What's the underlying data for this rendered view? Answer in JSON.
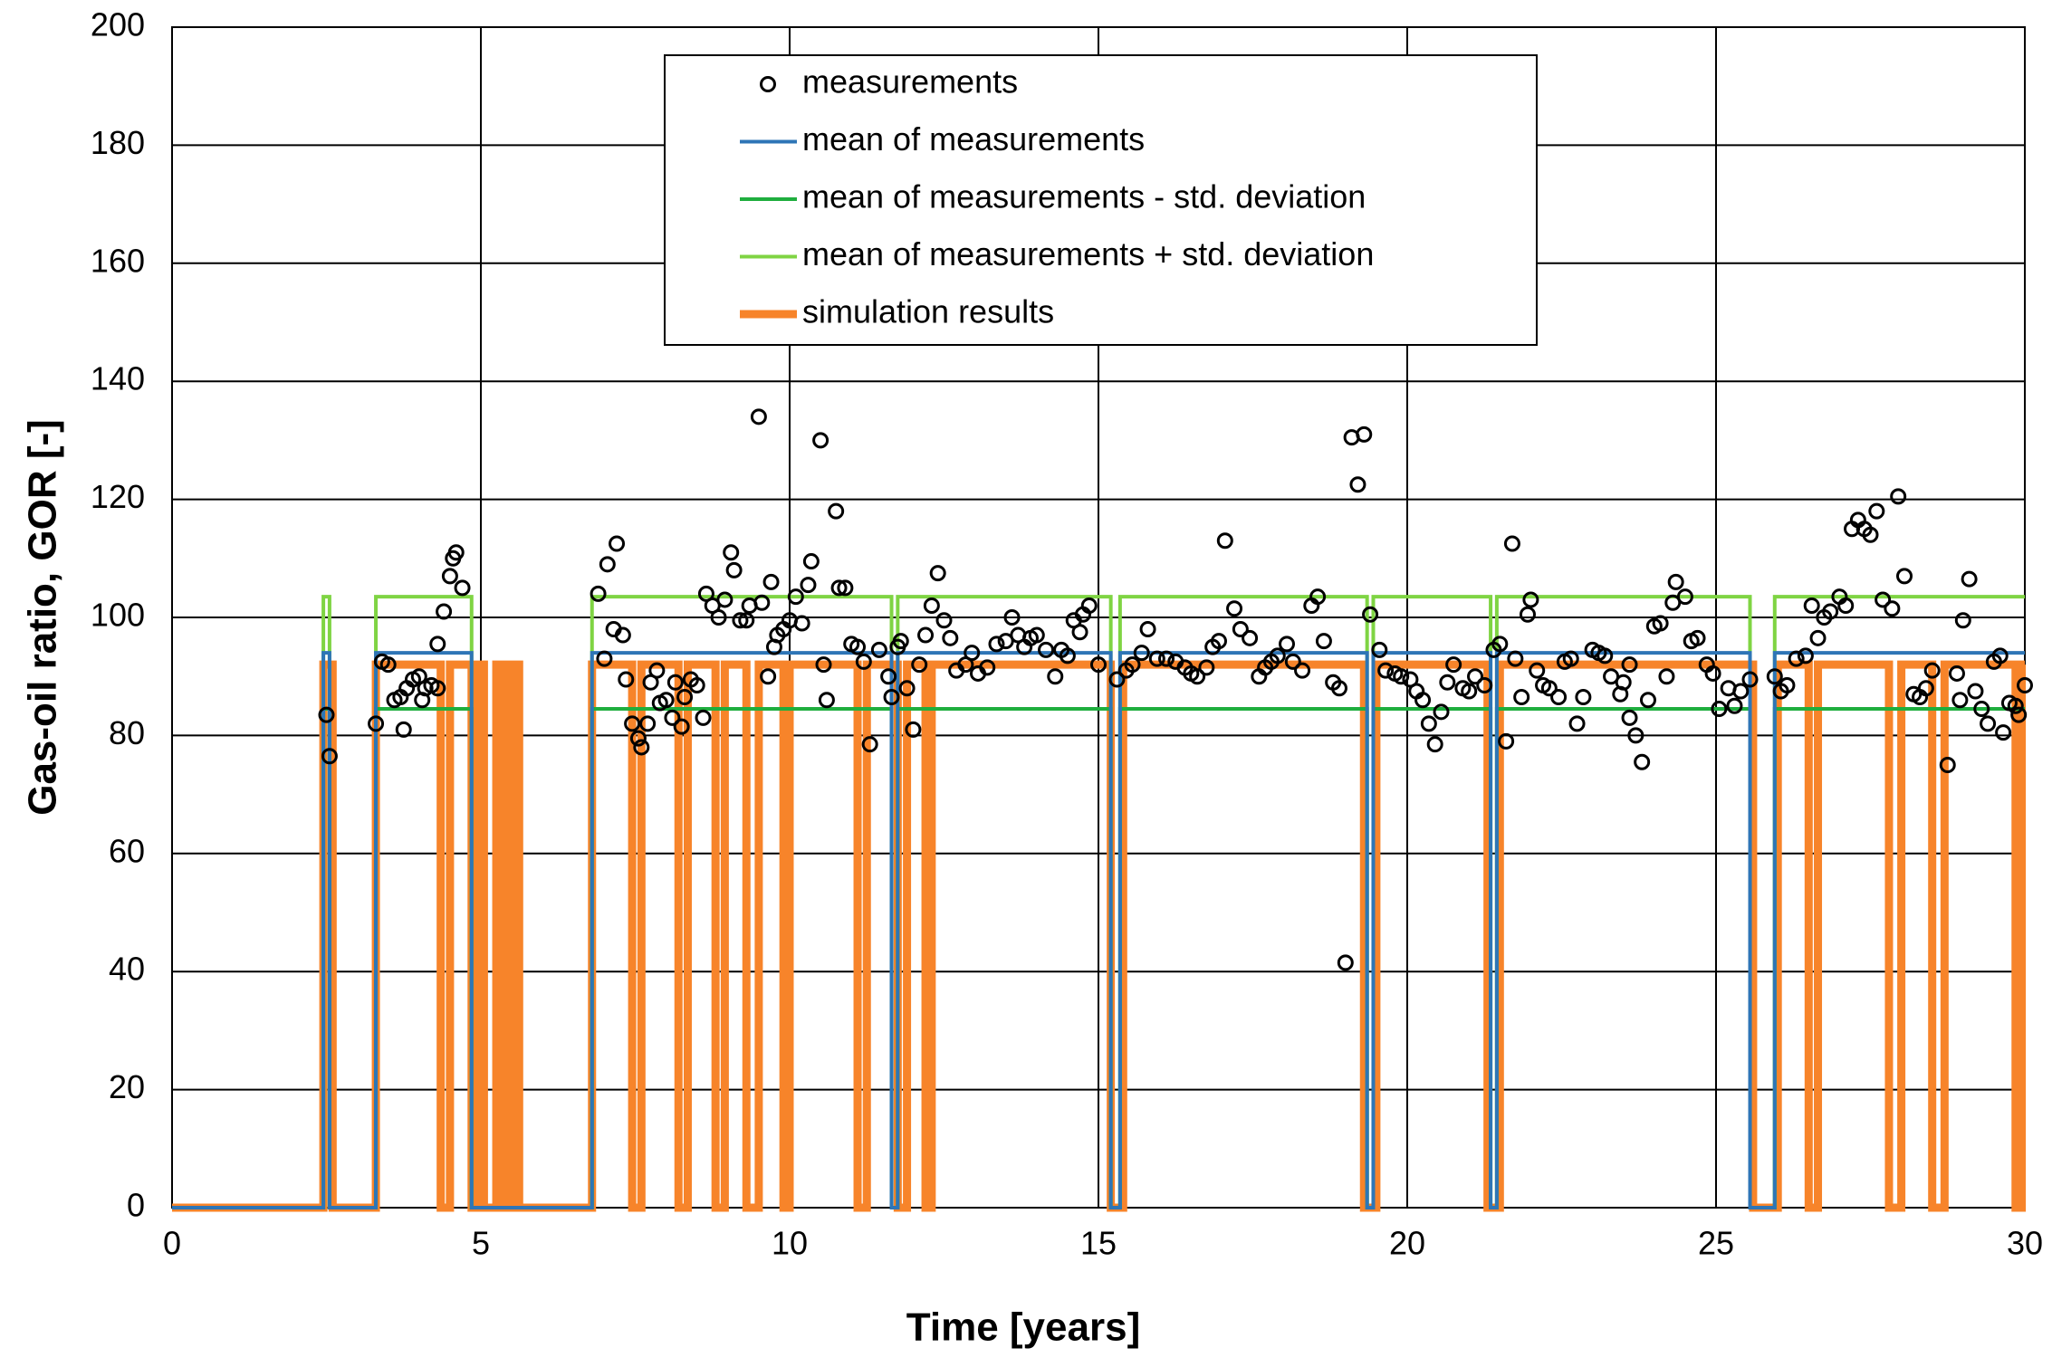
{
  "chart_data": {
    "type": "scatter",
    "xlabel": "Time [years]",
    "ylabel": "Gas-oil ratio, GOR [-]",
    "xlim": [
      0,
      30
    ],
    "xticks": [
      0,
      5,
      10,
      15,
      20,
      25,
      30
    ],
    "ylim": [
      0,
      200
    ],
    "yticks": [
      0,
      20,
      40,
      60,
      80,
      100,
      120,
      140,
      160,
      180,
      200
    ],
    "grid": true,
    "legend": "top",
    "series": [
      {
        "name": "measurements",
        "type": "scatter",
        "color": "#000000",
        "x": [
          2.5,
          2.55,
          3.3,
          3.4,
          3.5,
          3.6,
          3.7,
          3.75,
          3.8,
          3.9,
          4.0,
          4.05,
          4.1,
          4.2,
          4.3,
          4.3,
          4.4,
          4.5,
          4.55,
          4.6,
          4.7,
          6.9,
          7.0,
          7.05,
          7.15,
          7.2,
          7.3,
          7.35,
          7.45,
          7.55,
          7.6,
          7.7,
          7.75,
          7.85,
          7.9,
          8.0,
          8.1,
          8.15,
          8.25,
          8.3,
          8.4,
          8.5,
          8.6,
          8.65,
          8.75,
          8.85,
          8.95,
          9.05,
          9.1,
          9.2,
          9.3,
          9.35,
          9.5,
          9.55,
          9.65,
          9.7,
          9.75,
          9.8,
          9.9,
          10.0,
          10.1,
          10.2,
          10.3,
          10.35,
          10.5,
          10.55,
          10.6,
          10.75,
          10.8,
          10.9,
          11.0,
          11.1,
          11.2,
          11.3,
          11.45,
          11.6,
          11.65,
          11.75,
          11.8,
          11.9,
          12.0,
          12.1,
          12.2,
          12.3,
          12.4,
          12.5,
          12.6,
          12.7,
          12.85,
          12.95,
          13.05,
          13.2,
          13.35,
          13.5,
          13.6,
          13.7,
          13.8,
          13.9,
          14.0,
          14.15,
          14.3,
          14.4,
          14.5,
          14.6,
          14.7,
          14.75,
          14.85,
          15.0,
          15.3,
          15.45,
          15.55,
          15.7,
          15.8,
          15.95,
          16.1,
          16.25,
          16.4,
          16.5,
          16.6,
          16.75,
          16.85,
          16.95,
          17.05,
          17.2,
          17.3,
          17.45,
          17.6,
          17.7,
          17.8,
          17.9,
          18.05,
          18.15,
          18.3,
          18.45,
          18.55,
          18.65,
          18.8,
          18.9,
          19.0,
          19.1,
          19.2,
          19.3,
          19.4,
          19.55,
          19.65,
          19.8,
          19.9,
          20.05,
          20.15,
          20.25,
          20.35,
          20.45,
          20.55,
          20.65,
          20.75,
          20.9,
          21.0,
          21.1,
          21.25,
          21.4,
          21.5,
          21.6,
          21.7,
          21.75,
          21.85,
          21.95,
          22.0,
          22.1,
          22.2,
          22.3,
          22.45,
          22.55,
          22.65,
          22.75,
          22.85,
          23.0,
          23.1,
          23.2,
          23.3,
          23.45,
          23.5,
          23.6,
          23.6,
          23.7,
          23.8,
          23.9,
          24.0,
          24.1,
          24.2,
          24.3,
          24.35,
          24.5,
          24.6,
          24.7,
          24.85,
          24.95,
          25.05,
          25.2,
          25.3,
          25.4,
          25.55,
          25.95,
          26.05,
          26.15,
          26.3,
          26.45,
          26.55,
          26.65,
          26.75,
          26.85,
          27.0,
          27.1,
          27.2,
          27.3,
          27.4,
          27.5,
          27.6,
          27.7,
          27.85,
          27.95,
          28.05,
          28.2,
          28.3,
          28.4,
          28.5,
          28.75,
          28.9,
          28.95,
          29.0,
          29.1,
          29.2,
          29.3,
          29.4,
          29.5,
          29.6,
          29.65,
          29.75,
          29.85,
          29.9,
          30.0
        ],
        "values": [
          83.5,
          76.5,
          82,
          92.5,
          92,
          86,
          86.5,
          81,
          88,
          89.5,
          90,
          86,
          88,
          88.5,
          88,
          95.5,
          101,
          107,
          110,
          111,
          105,
          104,
          93,
          109,
          98,
          112.5,
          97,
          89.5,
          82,
          79.5,
          78,
          82,
          89,
          91,
          85.5,
          86,
          83,
          89,
          81.5,
          86.5,
          89.5,
          88.5,
          83,
          104,
          102,
          100,
          103,
          111,
          108,
          99.5,
          99.5,
          102,
          134,
          102.5,
          90,
          106,
          95,
          97,
          98,
          99.5,
          103.5,
          99,
          105.5,
          109.5,
          130,
          92,
          86,
          118,
          105,
          105,
          95.5,
          95,
          92.5,
          78.5,
          94.5,
          90,
          86.5,
          95,
          96,
          88,
          81,
          92,
          97,
          102,
          107.5,
          99.5,
          96.5,
          91,
          92,
          94,
          90.5,
          91.5,
          95.5,
          96,
          100,
          97,
          95,
          96.5,
          97,
          94.5,
          90,
          94.5,
          93.5,
          99.5,
          97.5,
          100.5,
          102,
          92,
          89.5,
          91,
          92,
          94,
          98,
          93,
          93,
          92.5,
          91.5,
          90.5,
          90,
          91.5,
          95,
          96,
          113,
          101.5,
          98,
          96.5,
          90,
          91.5,
          92.5,
          93.5,
          95.5,
          92.5,
          91,
          102,
          103.5,
          96,
          89,
          88,
          41.5,
          130.5,
          122.5,
          131,
          100.5,
          94.5,
          91,
          90.5,
          90,
          89.5,
          87.5,
          86,
          82,
          78.5,
          84,
          89,
          92,
          88,
          87.5,
          90,
          88.5,
          94.5,
          95.5,
          79,
          112.5,
          93,
          86.5,
          100.5,
          103,
          91,
          88.5,
          88,
          86.5,
          92.5,
          93,
          82,
          86.5,
          94.5,
          94,
          93.5,
          90,
          87,
          89,
          92,
          83,
          80,
          75.5,
          86,
          98.5,
          99,
          90,
          102.5,
          106,
          103.5,
          96,
          96.5,
          92,
          90.5,
          84.5,
          88,
          85,
          87.5,
          89.5,
          90,
          87.5,
          88.5,
          93,
          93.5,
          102,
          96.5,
          100,
          101,
          103.5,
          102,
          115,
          116.5,
          115,
          114,
          118,
          103,
          101.5,
          120.5,
          107,
          87,
          86.5,
          88,
          91,
          75,
          90.5,
          86,
          99.5,
          106.5,
          87.5,
          84.5,
          82,
          92.5,
          93.5,
          80.5,
          85.5,
          85,
          83.5,
          88.5
        ]
      },
      {
        "name": "mean of measurements",
        "type": "line",
        "color": "#2e75b6",
        "x": [
          0,
          2.45,
          2.45,
          2.55,
          2.55,
          3.3,
          3.3,
          4.85,
          4.85,
          6.8,
          6.8,
          11.65,
          11.65,
          11.75,
          11.75,
          15.2,
          15.2,
          15.35,
          15.35,
          19.35,
          19.35,
          19.45,
          19.45,
          21.35,
          21.35,
          21.45,
          21.45,
          25.55,
          25.55,
          25.95,
          25.95,
          30
        ],
        "values": [
          0,
          0,
          94,
          94,
          0,
          0,
          94,
          94,
          0,
          0,
          94,
          94,
          0,
          0,
          94,
          94,
          0,
          0,
          94,
          94,
          0,
          0,
          94,
          94,
          0,
          0,
          94,
          94,
          0,
          0,
          94,
          94
        ]
      },
      {
        "name": "mean of measurements - std. deviation",
        "type": "line",
        "color": "#1fae3e",
        "x": [
          0,
          2.45,
          2.45,
          2.55,
          2.55,
          3.3,
          3.3,
          4.85,
          4.85,
          6.8,
          6.8,
          11.65,
          11.65,
          11.75,
          11.75,
          15.2,
          15.2,
          15.35,
          15.35,
          19.35,
          19.35,
          19.45,
          19.45,
          21.35,
          21.35,
          21.45,
          21.45,
          25.55,
          25.55,
          25.95,
          25.95,
          30
        ],
        "values": [
          0,
          0,
          84.5,
          84.5,
          0,
          0,
          84.5,
          84.5,
          0,
          0,
          84.5,
          84.5,
          0,
          0,
          84.5,
          84.5,
          0,
          0,
          84.5,
          84.5,
          0,
          0,
          84.5,
          84.5,
          0,
          0,
          84.5,
          84.5,
          0,
          0,
          84.5,
          84.5
        ]
      },
      {
        "name": "mean of measurements + std. deviation",
        "type": "line",
        "color": "#7fd443",
        "x": [
          0,
          2.45,
          2.45,
          2.55,
          2.55,
          3.3,
          3.3,
          4.85,
          4.85,
          6.8,
          6.8,
          11.65,
          11.65,
          11.75,
          11.75,
          15.2,
          15.2,
          15.35,
          15.35,
          19.35,
          19.35,
          19.45,
          19.45,
          21.35,
          21.35,
          21.45,
          21.45,
          25.55,
          25.55,
          25.95,
          25.95,
          30
        ],
        "values": [
          0,
          0,
          103.5,
          103.5,
          0,
          0,
          103.5,
          103.5,
          0,
          0,
          103.5,
          103.5,
          0,
          0,
          103.5,
          103.5,
          0,
          0,
          103.5,
          103.5,
          0,
          0,
          103.5,
          103.5,
          0,
          0,
          103.5,
          103.5,
          0,
          0,
          103.5,
          103.5
        ]
      },
      {
        "name": "simulation results",
        "type": "line",
        "color": "#f7842a",
        "width": "thick",
        "x": [
          0,
          2.45,
          2.45,
          2.6,
          2.6,
          3.3,
          3.3,
          4.35,
          4.35,
          4.5,
          4.5,
          4.85,
          4.85,
          4.95,
          4.95,
          5.05,
          5.05,
          5.25,
          5.25,
          5.32,
          5.32,
          5.4,
          5.4,
          5.47,
          5.47,
          5.55,
          5.55,
          5.62,
          5.62,
          6.8,
          6.8,
          7.45,
          7.45,
          7.6,
          7.6,
          8.2,
          8.2,
          8.35,
          8.35,
          8.8,
          8.8,
          8.95,
          8.95,
          9.3,
          9.3,
          9.5,
          9.5,
          9.9,
          9.9,
          10.0,
          10.0,
          11.1,
          11.1,
          11.25,
          11.25,
          11.75,
          11.75,
          11.9,
          11.9,
          12.2,
          12.2,
          12.3,
          12.3,
          15.2,
          15.2,
          15.4,
          15.4,
          19.3,
          19.3,
          19.5,
          19.5,
          21.3,
          21.3,
          21.5,
          21.5,
          25.6,
          25.6,
          26.0,
          26.0,
          26.5,
          26.5,
          26.65,
          26.65,
          27.8,
          27.8,
          28.0,
          28.0,
          28.5,
          28.5,
          28.7,
          28.7,
          29.85,
          29.85,
          29.95,
          29.95,
          30
        ],
        "values": [
          0,
          0,
          92,
          92,
          0,
          0,
          92,
          92,
          0,
          0,
          92,
          92,
          0,
          0,
          92,
          92,
          0,
          0,
          92,
          92,
          0,
          0,
          92,
          92,
          0,
          0,
          92,
          92,
          0,
          0,
          92,
          92,
          0,
          0,
          92,
          92,
          0,
          0,
          92,
          92,
          0,
          0,
          92,
          92,
          0,
          0,
          92,
          92,
          0,
          0,
          92,
          92,
          0,
          0,
          92,
          92,
          0,
          0,
          92,
          92,
          0,
          0,
          92,
          92,
          0,
          0,
          92,
          92,
          0,
          0,
          92,
          92,
          0,
          0,
          92,
          92,
          0,
          0,
          92,
          92,
          0,
          0,
          92,
          92,
          0,
          0,
          92,
          92,
          0,
          0,
          92,
          92,
          0,
          0,
          92,
          92
        ]
      }
    ]
  }
}
